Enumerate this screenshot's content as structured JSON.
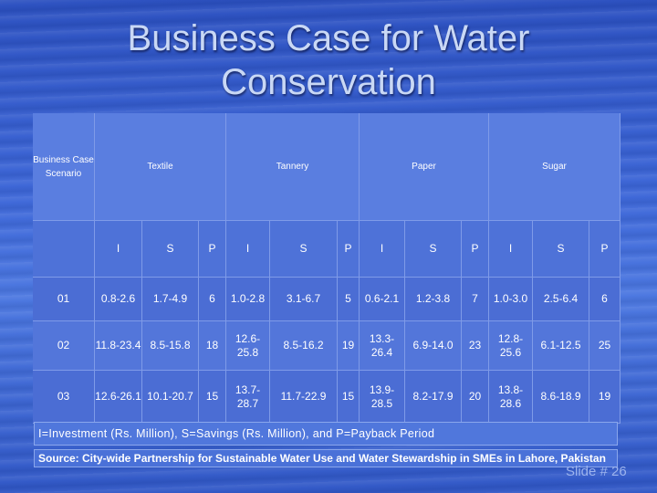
{
  "slide": {
    "title_line1": "Business Case for Water",
    "title_line2": "Conservation",
    "slide_number": "Slide # 26"
  },
  "table": {
    "header": {
      "scenario": "Business Case Scenario",
      "sectors": [
        "Textile",
        "Tannery",
        "Paper",
        "Sugar"
      ]
    },
    "subheaders": [
      "I",
      "S",
      "P",
      "I",
      "S",
      "P",
      "I",
      "S",
      "P",
      "I",
      "S",
      "P"
    ],
    "rows": [
      {
        "scenario": "01",
        "cells": [
          "0.8-2.6",
          "1.7-4.9",
          "6",
          "1.0-2.8",
          "3.1-6.7",
          "5",
          "0.6-2.1",
          "1.2-3.8",
          "7",
          "1.0-3.0",
          "2.5-6.4",
          "6"
        ]
      },
      {
        "scenario": "02",
        "cells": [
          "11.8-23.4",
          "8.5-15.8",
          "18",
          "12.6-25.8",
          "8.5-16.2",
          "19",
          "13.3-26.4",
          "6.9-14.0",
          "23",
          "12.8-25.6",
          "6.1-12.5",
          "25"
        ]
      },
      {
        "scenario": "03",
        "cells": [
          "12.6-26.1",
          "10.1-20.7",
          "15",
          "13.7-28.7",
          "11.7-22.9",
          "15",
          "13.9-28.5",
          "8.2-17.9",
          "20",
          "13.8-28.6",
          "8.6-18.9",
          "19"
        ]
      }
    ]
  },
  "legend": "I=Investment (Rs. Million), S=Savings (Rs. Million), and P=Payback Period",
  "source": "Source: City-wide Partnership for Sustainable Water Use and Water Stewardship in SMEs in Lahore, Pakistan"
}
